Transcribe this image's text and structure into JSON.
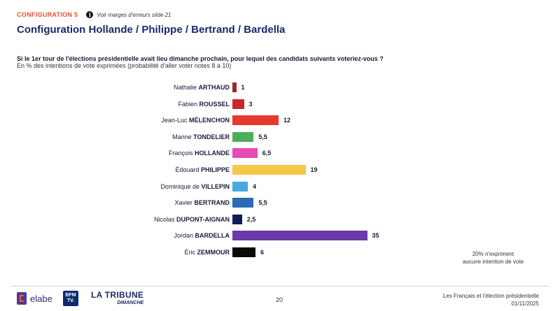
{
  "header": {
    "config_tag": "CONFIGURATION 5",
    "info_note": "Voir marges d'erreurs slide 21",
    "title": "Configuration Hollande / Philippe / Bertrand / Bardella"
  },
  "question": "Si le 1er tour de l'élections présidentielle avait lieu dimanche prochain, pour lequel des candidats suivants voteriez-vous ?",
  "subtitle": "En % des intentions de vote exprimées (probabilité d'aller voter notes 8 à 10)",
  "chart_data": {
    "type": "bar",
    "orientation": "horizontal",
    "title": "",
    "xlabel": "",
    "ylabel": "",
    "grid": false,
    "categories": [
      {
        "first": "Nathalie",
        "last": "ARTHAUD"
      },
      {
        "first": "Fabien",
        "last": "ROUSSEL"
      },
      {
        "first": "Jean-Luc",
        "last": "MÉLENCHON"
      },
      {
        "first": "Marine",
        "last": "TONDELIER"
      },
      {
        "first": "François",
        "last": "HOLLANDE"
      },
      {
        "first": "Édouard",
        "last": "PHILIPPE"
      },
      {
        "first": "Dominique de",
        "last": "VILLEPIN"
      },
      {
        "first": "Xavier",
        "last": "BERTRAND"
      },
      {
        "first": "Nicolas",
        "last": "DUPONT-AIGNAN"
      },
      {
        "first": "Jordan",
        "last": "BARDELLA"
      },
      {
        "first": "Éric",
        "last": "ZEMMOUR"
      }
    ],
    "values": [
      1,
      3,
      12,
      5.5,
      6.5,
      19,
      4,
      5.5,
      2.5,
      35,
      6
    ],
    "value_labels": [
      "1",
      "3",
      "12",
      "5,5",
      "6,5",
      "19",
      "4",
      "5,5",
      "2,5",
      "35",
      "6"
    ],
    "colors": [
      "#a0281e",
      "#c8282d",
      "#e63a2e",
      "#4cae5a",
      "#e64ab4",
      "#f5c84a",
      "#4aa8e0",
      "#2e6ab4",
      "#0f1e50",
      "#6a3aa8",
      "#0a0a0a"
    ]
  },
  "note": [
    "20% n'expriment",
    "aucune intention de vote"
  ],
  "footer": {
    "elabe": "elabe",
    "bfm": [
      "BFM",
      "TV."
    ],
    "tribune_main": "LA TRIBUNE",
    "tribune_sub": "DIMANCHE",
    "page_number": "20",
    "right_line1": "Les Français et l'élection présidentielle",
    "right_line2": "01/11/2025"
  }
}
